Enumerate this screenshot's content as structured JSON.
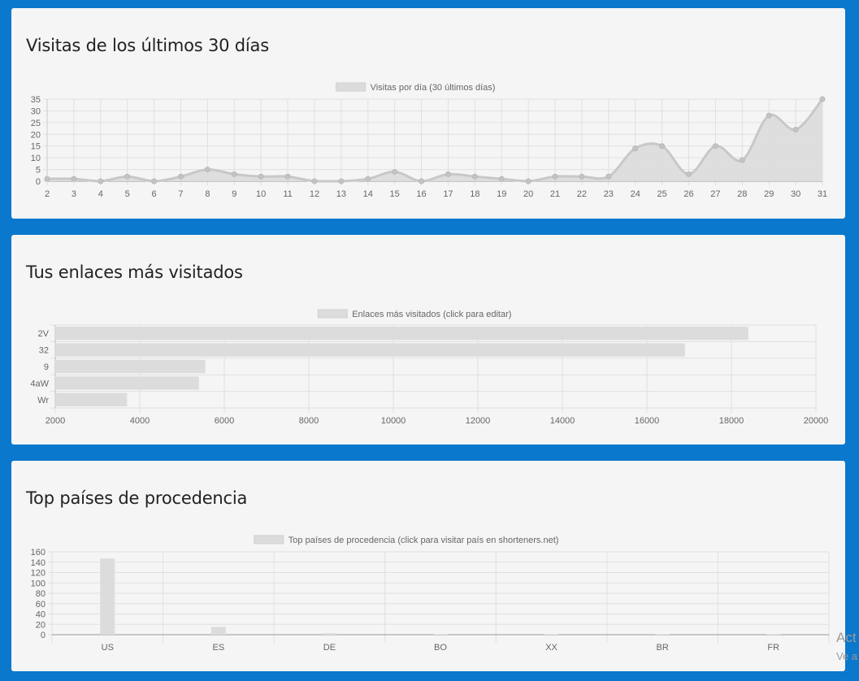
{
  "cards": [
    {
      "title": "Visitas de los últimos 30 días"
    },
    {
      "title": "Tus enlaces más visitados"
    },
    {
      "title": "Top países de procedencia"
    }
  ],
  "overlay": {
    "line1": "Act",
    "line2": "Ve a"
  },
  "colors": {
    "page_bg": "#0a78cc",
    "card_bg": "#f5f5f5",
    "series_fill": "#dcdcdc",
    "series_line": "#c8c8c8",
    "grid": "#e0e0e0"
  },
  "chart_data": [
    {
      "type": "area",
      "legend": "Visitas por día (30 últimos días)",
      "legend_position": "top-center",
      "x": [
        "2",
        "3",
        "4",
        "5",
        "6",
        "7",
        "8",
        "9",
        "10",
        "11",
        "12",
        "13",
        "14",
        "15",
        "16",
        "17",
        "18",
        "19",
        "20",
        "21",
        "22",
        "23",
        "24",
        "25",
        "26",
        "27",
        "28",
        "29",
        "30",
        "31"
      ],
      "values": [
        1,
        1,
        0,
        2,
        0,
        2,
        5,
        3,
        2,
        2,
        0,
        0,
        1,
        4,
        0,
        3,
        2,
        1,
        0,
        2,
        2,
        2,
        14,
        15,
        3,
        15,
        9,
        28,
        22,
        35
      ],
      "ylim": [
        0,
        35
      ],
      "yticks": [
        0,
        5,
        10,
        15,
        20,
        25,
        30,
        35
      ],
      "grid": true
    },
    {
      "type": "bar",
      "orientation": "horizontal",
      "legend": "Enlaces más visitados (click para editar)",
      "legend_position": "top-center",
      "categories": [
        "2V",
        "32",
        "9",
        "4aW",
        "Wr"
      ],
      "values": [
        18400,
        16900,
        5550,
        5400,
        3700
      ],
      "xlim": [
        2000,
        20000
      ],
      "xticks": [
        2000,
        4000,
        6000,
        8000,
        10000,
        12000,
        14000,
        16000,
        18000,
        20000
      ],
      "grid": true
    },
    {
      "type": "bar",
      "legend": "Top países de procedencia (click para visitar país en shorteners.net)",
      "legend_position": "top-center",
      "categories": [
        "US",
        "ES",
        "DE",
        "BO",
        "XX",
        "BR",
        "FR"
      ],
      "values": [
        147,
        15,
        3,
        1,
        1,
        1,
        1
      ],
      "ylim": [
        0,
        160
      ],
      "yticks": [
        0,
        20,
        40,
        60,
        80,
        100,
        120,
        140,
        160
      ],
      "grid": true
    }
  ]
}
